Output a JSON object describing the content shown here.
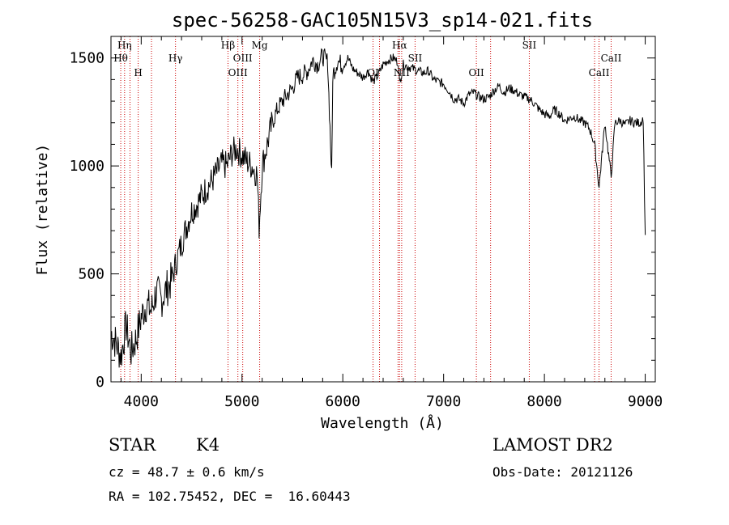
{
  "chart_data": {
    "type": "line",
    "title": "spec-56258-GAC105N15V3_sp14-021.fits",
    "xlabel": "Wavelength (Å)",
    "ylabel": "Flux (relative)",
    "xlim": [
      3700,
      9100
    ],
    "ylim": [
      0,
      1600
    ],
    "xticks": [
      4000,
      5000,
      6000,
      7000,
      8000,
      9000
    ],
    "yticks": [
      0,
      500,
      1000,
      1500
    ],
    "grid": false,
    "line_color": "#000000",
    "marker_color": "#cc0000",
    "spectrum": {
      "x": [
        3700,
        3750,
        3800,
        3850,
        3900,
        3950,
        4000,
        4050,
        4100,
        4150,
        4200,
        4250,
        4300,
        4350,
        4400,
        4450,
        4500,
        4550,
        4600,
        4650,
        4700,
        4750,
        4800,
        4850,
        4900,
        4950,
        5000,
        5050,
        5100,
        5150,
        5170,
        5200,
        5250,
        5300,
        5350,
        5400,
        5450,
        5500,
        5550,
        5600,
        5650,
        5700,
        5750,
        5800,
        5850,
        5890,
        5900,
        5950,
        6000,
        6050,
        6100,
        6150,
        6200,
        6250,
        6300,
        6350,
        6400,
        6450,
        6500,
        6550,
        6563,
        6600,
        6650,
        6700,
        6750,
        6800,
        6850,
        6900,
        6950,
        7000,
        7050,
        7100,
        7150,
        7200,
        7250,
        7300,
        7350,
        7400,
        7450,
        7500,
        7550,
        7600,
        7650,
        7700,
        7750,
        7800,
        7850,
        7900,
        7950,
        8000,
        8050,
        8100,
        8150,
        8200,
        8250,
        8300,
        8350,
        8400,
        8450,
        8498,
        8542,
        8600,
        8662,
        8700,
        8750,
        8800,
        8850,
        8900,
        8950,
        8980,
        9000
      ],
      "y": [
        230,
        180,
        120,
        260,
        140,
        200,
        300,
        360,
        330,
        420,
        380,
        430,
        470,
        560,
        640,
        720,
        790,
        820,
        860,
        900,
        930,
        970,
        1010,
        1000,
        1060,
        1080,
        1050,
        1020,
        1000,
        960,
        720,
        1000,
        1100,
        1200,
        1260,
        1300,
        1330,
        1360,
        1410,
        1420,
        1440,
        1490,
        1470,
        1510,
        1480,
        950,
        1420,
        1490,
        1460,
        1500,
        1450,
        1430,
        1410,
        1440,
        1390,
        1420,
        1470,
        1490,
        1500,
        1480,
        1380,
        1470,
        1460,
        1450,
        1440,
        1430,
        1440,
        1400,
        1390,
        1380,
        1350,
        1310,
        1310,
        1290,
        1330,
        1340,
        1320,
        1310,
        1320,
        1350,
        1370,
        1340,
        1360,
        1350,
        1330,
        1320,
        1310,
        1290,
        1260,
        1240,
        1230,
        1260,
        1240,
        1210,
        1220,
        1230,
        1210,
        1200,
        1170,
        1100,
        900,
        1200,
        950,
        1200,
        1210,
        1190,
        1210,
        1200,
        1200,
        1220,
        680
      ]
    },
    "line_markers": [
      {
        "label": "Hη",
        "x": 3835,
        "row": 0
      },
      {
        "label": "Hθ",
        "x": 3797,
        "row": 1
      },
      {
        "label": "H",
        "x": 3970,
        "row": 2
      },
      {
        "label": "Hγ",
        "x": 4340,
        "row": 1
      },
      {
        "label": "Hβ",
        "x": 4861,
        "row": 0
      },
      {
        "label": "OIII",
        "x": 5007,
        "row": 1
      },
      {
        "label": "OIII",
        "x": 4959,
        "row": 2
      },
      {
        "label": "Mg",
        "x": 5175,
        "row": 0
      },
      {
        "label": "OI",
        "x": 6300,
        "row": 2
      },
      {
        "label": "Hα",
        "x": 6563,
        "row": 0
      },
      {
        "label": "NII",
        "x": 6584,
        "row": 2
      },
      {
        "label": "SII",
        "x": 6717,
        "row": 1
      },
      {
        "label": "OII",
        "x": 7325,
        "row": 2
      },
      {
        "label": "SII",
        "x": 7850,
        "row": 0
      },
      {
        "label": "CaII",
        "x": 8662,
        "row": 1
      },
      {
        "label": "CaII",
        "x": 8542,
        "row": 2
      }
    ],
    "extra_marker_x": [
      3889,
      4102,
      6364,
      6548,
      7466,
      8498
    ]
  },
  "info": {
    "object_type": "STAR",
    "subclass": "K4",
    "cz": "cz = 48.7 ± 0.6 km/s",
    "coords": "RA = 102.75452, DEC =  16.60443",
    "survey": "LAMOST DR2",
    "obs_date": "Obs-Date: 20121126"
  }
}
